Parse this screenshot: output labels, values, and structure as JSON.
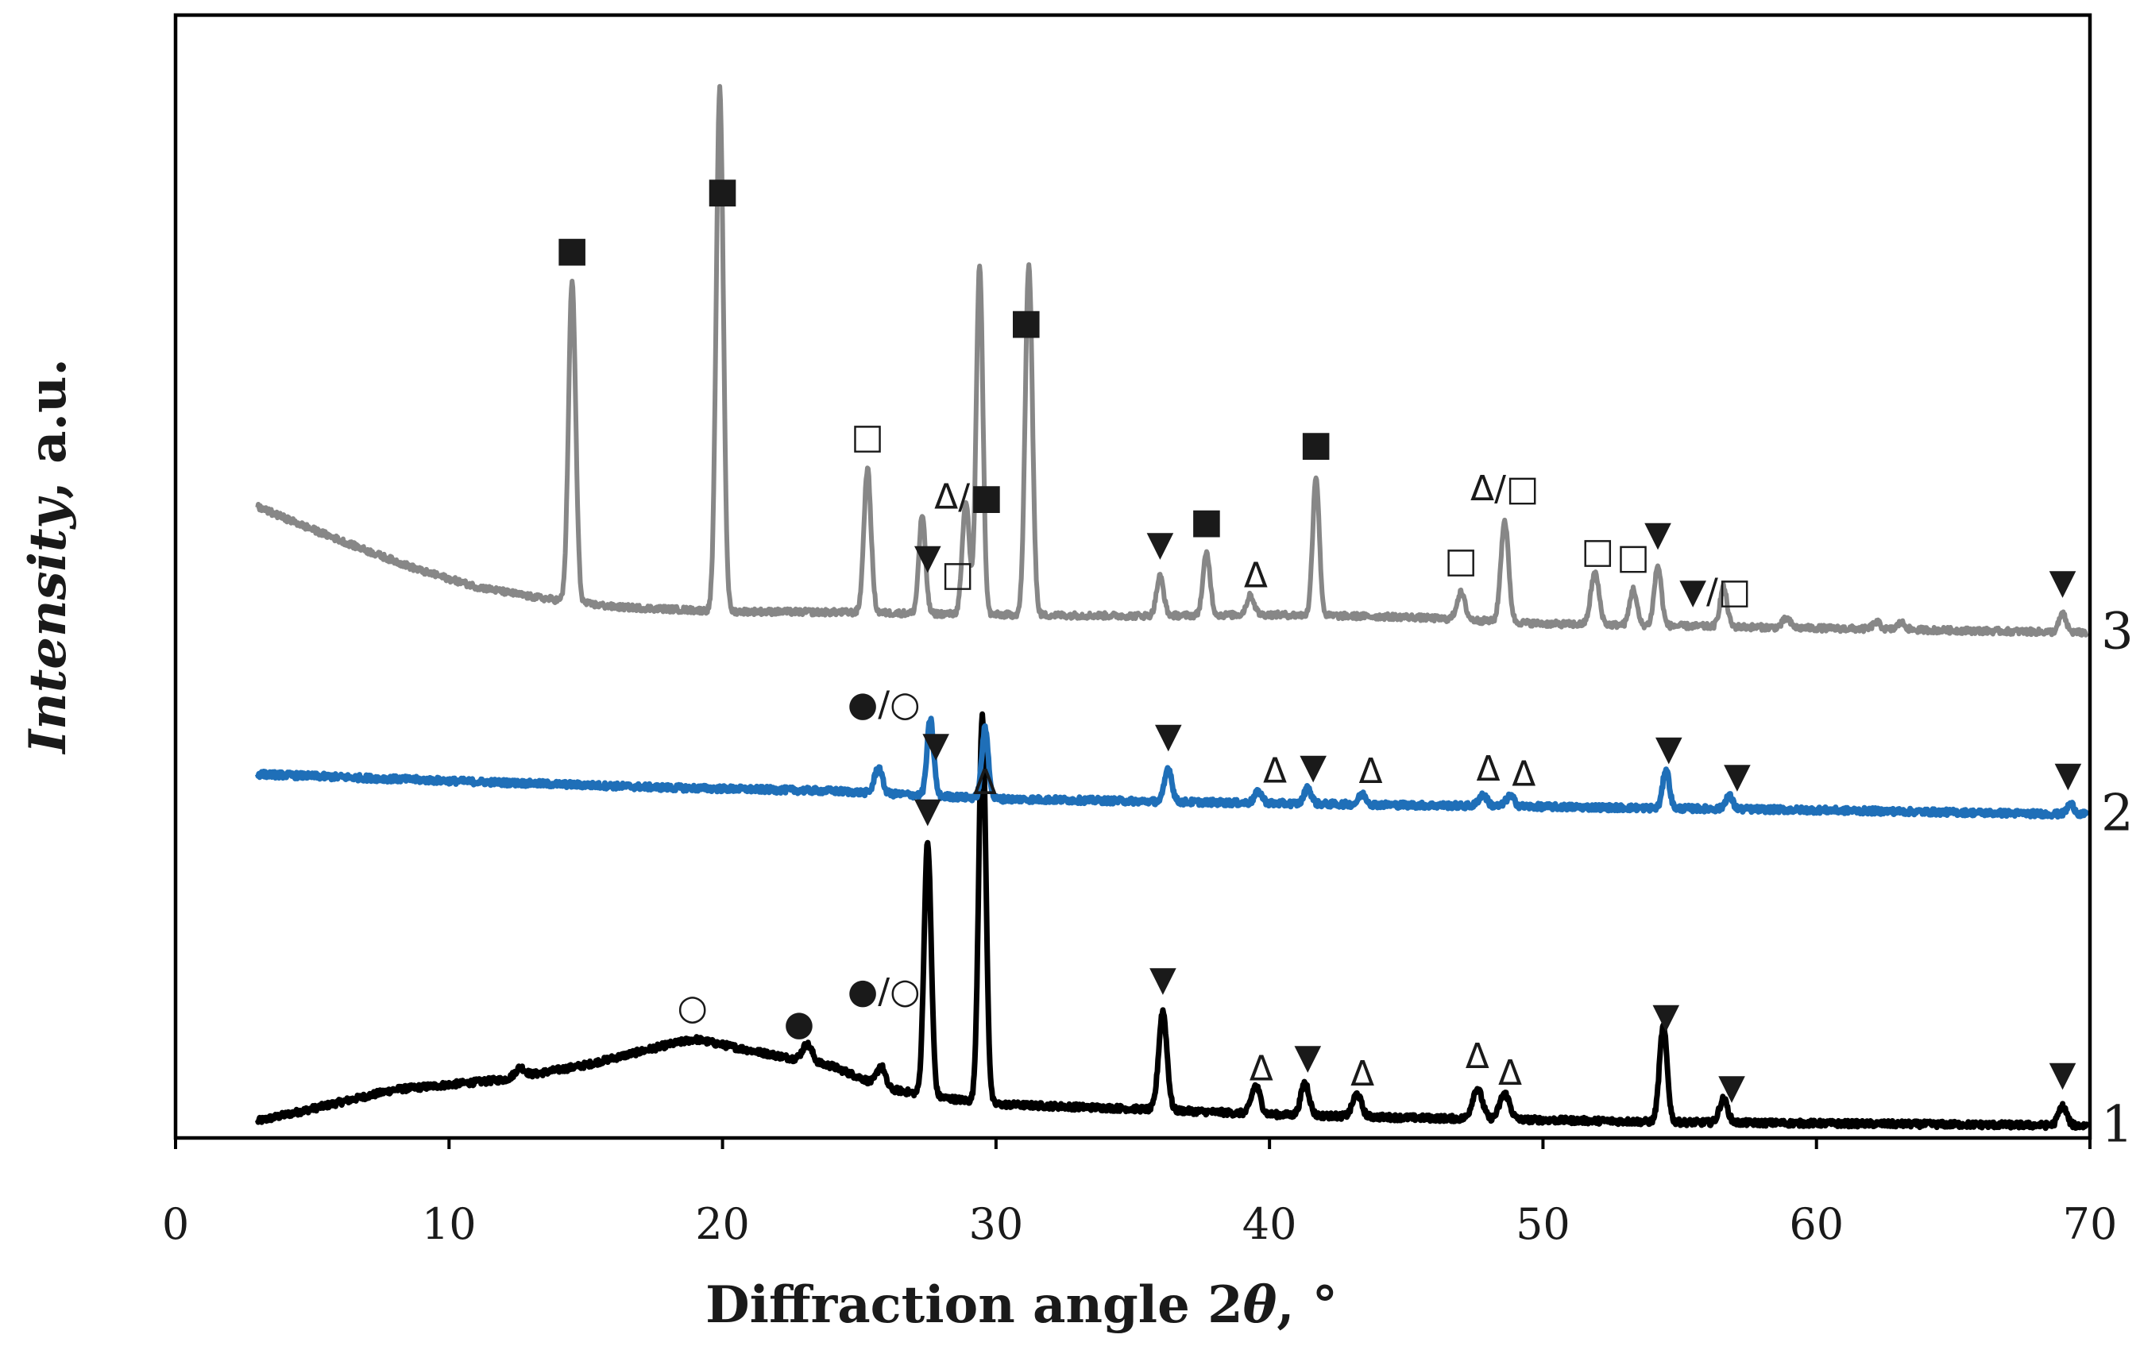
{
  "chart_data": {
    "type": "line",
    "title": "",
    "xlabel": "Diffraction angle 2θ, °",
    "xlabel_parts": {
      "pre": "Diffraction angle 2",
      "theta": "θ",
      "post": ", °"
    },
    "ylabel": "Intensity, a.u.",
    "ylabel_parts": {
      "main": "Intensity",
      "rest": ", a.u."
    },
    "xlim": [
      0,
      70
    ],
    "x_ticks": [
      0,
      10,
      20,
      30,
      40,
      50,
      60,
      70
    ],
    "grid": false,
    "legend": "none",
    "ylim": [
      0,
      100
    ],
    "series": [
      {
        "name": "1",
        "color": "#000000",
        "offset": 0,
        "baseline": [
          [
            3,
            1.5
          ],
          [
            5,
            2.6
          ],
          [
            8,
            4.3
          ],
          [
            12,
            5.2
          ],
          [
            15,
            6.5
          ],
          [
            18,
            8.3
          ],
          [
            19,
            8.8
          ],
          [
            21,
            7.8
          ],
          [
            24,
            6.4
          ],
          [
            26,
            4.4
          ],
          [
            28,
            3.6
          ],
          [
            30,
            3.0
          ],
          [
            35,
            2.6
          ],
          [
            40,
            2.1
          ],
          [
            45,
            1.8
          ],
          [
            50,
            1.6
          ],
          [
            55,
            1.4
          ],
          [
            60,
            1.3
          ],
          [
            65,
            1.2
          ],
          [
            70,
            1.1
          ]
        ],
        "peaks": [
          {
            "x": 12.6,
            "h": 0.8,
            "w": 0.18
          },
          {
            "x": 23.1,
            "h": 1.5,
            "w": 0.18
          },
          {
            "x": 25.8,
            "h": 1.8,
            "w": 0.15
          },
          {
            "x": 27.5,
            "h": 22.5,
            "w": 0.13
          },
          {
            "x": 29.5,
            "h": 34.5,
            "w": 0.13
          },
          {
            "x": 36.1,
            "h": 8.8,
            "w": 0.15
          },
          {
            "x": 39.5,
            "h": 2.5,
            "w": 0.16
          },
          {
            "x": 41.3,
            "h": 2.9,
            "w": 0.15
          },
          {
            "x": 43.2,
            "h": 2.0,
            "w": 0.16
          },
          {
            "x": 47.6,
            "h": 2.7,
            "w": 0.18
          },
          {
            "x": 48.6,
            "h": 2.3,
            "w": 0.18
          },
          {
            "x": 54.4,
            "h": 8.5,
            "w": 0.14
          },
          {
            "x": 56.6,
            "h": 2.1,
            "w": 0.15
          },
          {
            "x": 69.0,
            "h": 1.7,
            "w": 0.15
          }
        ]
      },
      {
        "name": "2",
        "color": "#1f6fb8",
        "offset": 29,
        "baseline": [
          [
            3,
            3.4
          ],
          [
            10,
            2.8
          ],
          [
            18,
            2.2
          ],
          [
            24,
            1.9
          ],
          [
            30,
            1.2
          ],
          [
            40,
            0.8
          ],
          [
            50,
            0.5
          ],
          [
            60,
            0.2
          ],
          [
            70,
            -0.2
          ]
        ],
        "peaks": [
          {
            "x": 25.7,
            "h": 2.3,
            "w": 0.14
          },
          {
            "x": 27.6,
            "h": 6.8,
            "w": 0.12
          },
          {
            "x": 29.6,
            "h": 6.2,
            "w": 0.12
          },
          {
            "x": 36.3,
            "h": 3.0,
            "w": 0.13
          },
          {
            "x": 39.6,
            "h": 1.0,
            "w": 0.14
          },
          {
            "x": 41.4,
            "h": 1.4,
            "w": 0.13
          },
          {
            "x": 43.4,
            "h": 0.9,
            "w": 0.14
          },
          {
            "x": 47.8,
            "h": 1.0,
            "w": 0.15
          },
          {
            "x": 48.8,
            "h": 0.9,
            "w": 0.15
          },
          {
            "x": 54.5,
            "h": 3.5,
            "w": 0.12
          },
          {
            "x": 56.8,
            "h": 1.2,
            "w": 0.13
          },
          {
            "x": 69.3,
            "h": 0.9,
            "w": 0.13
          }
        ]
      },
      {
        "name": "3",
        "color": "#878787",
        "offset": 45,
        "baseline": [
          [
            3,
            11.2
          ],
          [
            5,
            9.2
          ],
          [
            7,
            7.3
          ],
          [
            9,
            5.5
          ],
          [
            11,
            4.1
          ],
          [
            13,
            3.2
          ],
          [
            16,
            2.3
          ],
          [
            20,
            1.9
          ],
          [
            25,
            1.8
          ],
          [
            30,
            1.6
          ],
          [
            35,
            1.5
          ],
          [
            40,
            1.6
          ],
          [
            45,
            1.4
          ],
          [
            50,
            0.8
          ],
          [
            55,
            0.6
          ],
          [
            60,
            0.4
          ],
          [
            65,
            0.2
          ],
          [
            70,
            0.0
          ]
        ],
        "peaks": [
          {
            "x": 14.5,
            "h": 28.5,
            "w": 0.13
          },
          {
            "x": 19.9,
            "h": 46.5,
            "w": 0.13
          },
          {
            "x": 25.3,
            "h": 12.8,
            "w": 0.13
          },
          {
            "x": 27.3,
            "h": 8.7,
            "w": 0.12
          },
          {
            "x": 28.9,
            "h": 10.0,
            "w": 0.13
          },
          {
            "x": 29.4,
            "h": 31.2,
            "w": 0.12
          },
          {
            "x": 31.2,
            "h": 31.2,
            "w": 0.13
          },
          {
            "x": 36.0,
            "h": 3.5,
            "w": 0.13
          },
          {
            "x": 37.7,
            "h": 5.5,
            "w": 0.13
          },
          {
            "x": 39.3,
            "h": 1.7,
            "w": 0.14
          },
          {
            "x": 41.7,
            "h": 12.4,
            "w": 0.12
          },
          {
            "x": 47.0,
            "h": 2.4,
            "w": 0.15
          },
          {
            "x": 48.6,
            "h": 9.0,
            "w": 0.14
          },
          {
            "x": 51.9,
            "h": 4.6,
            "w": 0.15
          },
          {
            "x": 53.3,
            "h": 3.2,
            "w": 0.13
          },
          {
            "x": 54.2,
            "h": 5.3,
            "w": 0.13
          },
          {
            "x": 56.6,
            "h": 3.5,
            "w": 0.13
          },
          {
            "x": 58.9,
            "h": 0.8,
            "w": 0.14
          },
          {
            "x": 62.2,
            "h": 0.6,
            "w": 0.14
          },
          {
            "x": 63.1,
            "h": 0.6,
            "w": 0.14
          },
          {
            "x": 69.0,
            "h": 1.6,
            "w": 0.13
          }
        ]
      }
    ],
    "annotations": [
      {
        "series": "1",
        "x": 18.9,
        "text": "○"
      },
      {
        "series": "1",
        "x": 22.8,
        "text": "●"
      },
      {
        "series": "1",
        "x": 25.9,
        "text": "●/○"
      },
      {
        "series": "1",
        "x": 27.5,
        "text": "▼"
      },
      {
        "series": "1",
        "x": 29.6,
        "text": "Δ"
      },
      {
        "series": "1",
        "x": 36.1,
        "text": "▼"
      },
      {
        "series": "1",
        "x": 39.7,
        "text": "Δ"
      },
      {
        "series": "1",
        "x": 41.4,
        "text": "▼"
      },
      {
        "series": "1",
        "x": 43.4,
        "text": "Δ"
      },
      {
        "series": "1",
        "x": 47.6,
        "text": "Δ"
      },
      {
        "series": "1",
        "x": 48.8,
        "text": "Δ"
      },
      {
        "series": "1",
        "x": 54.5,
        "text": "▼"
      },
      {
        "series": "1",
        "x": 56.9,
        "text": "▼"
      },
      {
        "series": "1",
        "x": 69.0,
        "text": "▼"
      },
      {
        "series": "2",
        "x": 25.9,
        "text": "●/○"
      },
      {
        "series": "2",
        "x": 27.8,
        "text": "▼"
      },
      {
        "series": "2",
        "x": 36.3,
        "text": "▼"
      },
      {
        "series": "2",
        "x": 40.2,
        "text": "Δ"
      },
      {
        "series": "2",
        "x": 41.6,
        "text": "▼"
      },
      {
        "series": "2",
        "x": 43.7,
        "text": "Δ"
      },
      {
        "series": "2",
        "x": 48.0,
        "text": "Δ"
      },
      {
        "series": "2",
        "x": 49.3,
        "text": "Δ"
      },
      {
        "series": "2",
        "x": 54.6,
        "text": "▼"
      },
      {
        "series": "2",
        "x": 57.1,
        "text": "▼"
      },
      {
        "series": "2",
        "x": 69.2,
        "text": "▼"
      },
      {
        "series": "3",
        "x": 14.5,
        "text": "■"
      },
      {
        "series": "3",
        "x": 20.0,
        "text": "■"
      },
      {
        "series": "3",
        "x": 25.3,
        "text": "□"
      },
      {
        "series": "3",
        "x": 27.5,
        "text": "▼"
      },
      {
        "series": "3",
        "x": 28.6,
        "text": "□"
      },
      {
        "series": "3",
        "x": 29.0,
        "text": "Δ/■"
      },
      {
        "series": "3",
        "x": 31.1,
        "text": "■"
      },
      {
        "series": "3",
        "x": 36.0,
        "text": "▼"
      },
      {
        "series": "3",
        "x": 37.7,
        "text": "■"
      },
      {
        "series": "3",
        "x": 39.5,
        "text": "Δ"
      },
      {
        "series": "3",
        "x": 41.7,
        "text": "■"
      },
      {
        "series": "3",
        "x": 47.0,
        "text": "□"
      },
      {
        "series": "3",
        "x": 48.6,
        "text": "Δ/□"
      },
      {
        "series": "3",
        "x": 52.0,
        "text": "□"
      },
      {
        "series": "3",
        "x": 53.3,
        "text": "□"
      },
      {
        "series": "3",
        "x": 54.2,
        "text": "▼"
      },
      {
        "series": "3",
        "x": 56.3,
        "text": "▼/□"
      },
      {
        "series": "3",
        "x": 69.0,
        "text": "▼"
      }
    ]
  }
}
